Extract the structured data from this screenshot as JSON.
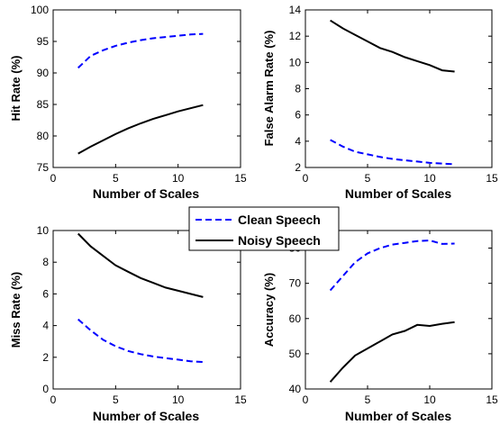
{
  "chart_data": [
    {
      "type": "line",
      "xlabel": "Number of Scales",
      "ylabel": "Hit Rate (%)",
      "xlim": [
        0,
        15
      ],
      "ylim": [
        75,
        100
      ],
      "xticks": [
        0,
        5,
        10,
        15
      ],
      "yticks": [
        75,
        80,
        85,
        90,
        95,
        100
      ],
      "series": [
        {
          "name": "Clean Speech",
          "x": [
            2,
            3,
            4,
            5,
            6,
            7,
            8,
            9,
            10,
            11,
            12
          ],
          "y": [
            90.8,
            92.7,
            93.6,
            94.3,
            94.8,
            95.2,
            95.5,
            95.7,
            95.9,
            96.1,
            96.2
          ]
        },
        {
          "name": "Noisy Speech",
          "x": [
            2,
            3,
            4,
            5,
            6,
            7,
            8,
            9,
            10,
            11,
            12
          ],
          "y": [
            77.2,
            78.3,
            79.3,
            80.3,
            81.2,
            82.0,
            82.7,
            83.3,
            83.9,
            84.4,
            84.9
          ]
        }
      ]
    },
    {
      "type": "line",
      "xlabel": "Number of Scales",
      "ylabel": "False Alarm Rate (%)",
      "xlim": [
        0,
        15
      ],
      "ylim": [
        2,
        14
      ],
      "xticks": [
        0,
        5,
        10,
        15
      ],
      "yticks": [
        2,
        4,
        6,
        8,
        10,
        12,
        14
      ],
      "series": [
        {
          "name": "Clean Speech",
          "x": [
            2,
            3,
            4,
            5,
            6,
            7,
            8,
            9,
            10,
            11,
            12
          ],
          "y": [
            4.1,
            3.6,
            3.2,
            3.0,
            2.8,
            2.65,
            2.55,
            2.45,
            2.35,
            2.3,
            2.25
          ]
        },
        {
          "name": "Noisy Speech",
          "x": [
            2,
            3,
            4,
            5,
            6,
            7,
            8,
            9,
            10,
            11,
            12
          ],
          "y": [
            13.2,
            12.6,
            12.1,
            11.6,
            11.1,
            10.8,
            10.4,
            10.1,
            9.8,
            9.4,
            9.3
          ]
        }
      ]
    },
    {
      "type": "line",
      "xlabel": "Number of Scales",
      "ylabel": "Miss Rate (%)",
      "xlim": [
        0,
        15
      ],
      "ylim": [
        0,
        10
      ],
      "xticks": [
        0,
        5,
        10,
        15
      ],
      "yticks": [
        0,
        2,
        4,
        6,
        8,
        10
      ],
      "series": [
        {
          "name": "Clean Speech",
          "x": [
            2,
            3,
            4,
            5,
            6,
            7,
            8,
            9,
            10,
            11,
            12
          ],
          "y": [
            4.4,
            3.7,
            3.1,
            2.7,
            2.4,
            2.2,
            2.05,
            1.95,
            1.85,
            1.75,
            1.7
          ]
        },
        {
          "name": "Noisy Speech",
          "x": [
            2,
            3,
            4,
            5,
            6,
            7,
            8,
            9,
            10,
            11,
            12
          ],
          "y": [
            9.8,
            9.0,
            8.4,
            7.8,
            7.4,
            7.0,
            6.7,
            6.4,
            6.2,
            6.0,
            5.8
          ]
        }
      ]
    },
    {
      "type": "line",
      "xlabel": "Number of Scales",
      "ylabel": "Accuracy (%)",
      "xlim": [
        0,
        15
      ],
      "ylim": [
        40,
        85
      ],
      "xticks": [
        0,
        5,
        10,
        15
      ],
      "yticks": [
        40,
        50,
        60,
        70,
        80
      ],
      "series": [
        {
          "name": "Clean Speech",
          "x": [
            2,
            3,
            4,
            5,
            6,
            7,
            8,
            9,
            10,
            11,
            12
          ],
          "y": [
            68,
            72,
            76,
            78.5,
            80,
            81,
            81.5,
            82,
            82.2,
            81.2,
            81.3
          ]
        },
        {
          "name": "Noisy Speech",
          "x": [
            2,
            3,
            4,
            5,
            6,
            7,
            8,
            9,
            10,
            11,
            12
          ],
          "y": [
            42,
            46,
            49.5,
            51.5,
            53.5,
            55.5,
            56.5,
            58.2,
            57.9,
            58.5,
            59
          ]
        }
      ]
    }
  ],
  "legend": {
    "placement": "center",
    "entries": [
      {
        "label": "Clean Speech",
        "color": "#0000ff",
        "style": "dashed"
      },
      {
        "label": "Noisy Speech",
        "color": "#000000",
        "style": "solid"
      }
    ]
  }
}
